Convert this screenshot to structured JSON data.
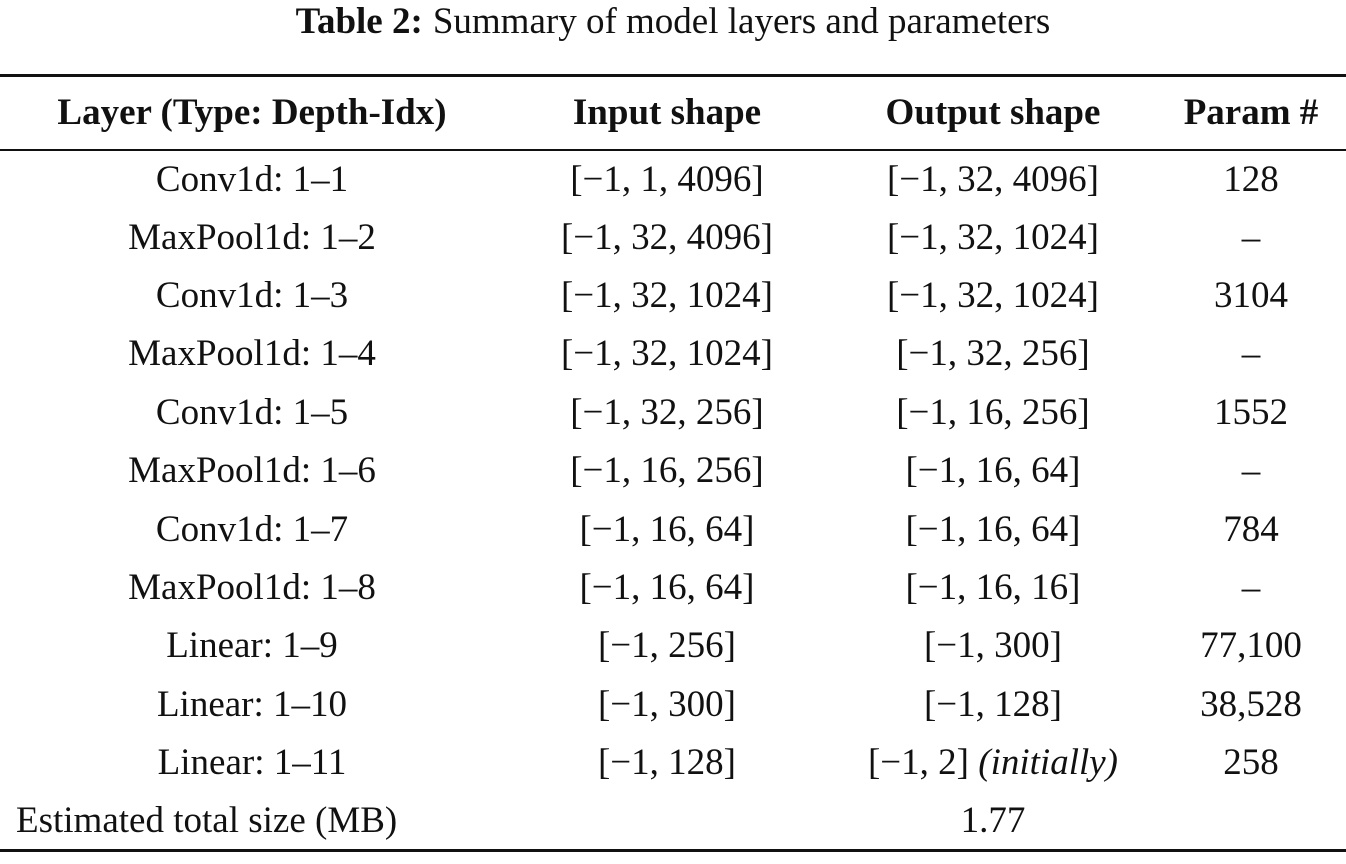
{
  "caption": {
    "label": "Table 2:",
    "text": "Summary of model layers and parameters"
  },
  "table": {
    "headers": [
      "Layer (Type: Depth-Idx)",
      "Input shape",
      "Output shape",
      "Param #"
    ],
    "rows": [
      {
        "layer": "Conv1d: 1–1",
        "input": "[−1, 1, 4096]",
        "output": "[−1, 32, 4096]",
        "output_note": "",
        "params": "128"
      },
      {
        "layer": "MaxPool1d: 1–2",
        "input": "[−1, 32, 4096]",
        "output": "[−1, 32, 1024]",
        "output_note": "",
        "params": "–"
      },
      {
        "layer": "Conv1d: 1–3",
        "input": "[−1, 32, 1024]",
        "output": "[−1, 32, 1024]",
        "output_note": "",
        "params": "3104"
      },
      {
        "layer": "MaxPool1d: 1–4",
        "input": "[−1, 32, 1024]",
        "output": "[−1, 32, 256]",
        "output_note": "",
        "params": "–"
      },
      {
        "layer": "Conv1d: 1–5",
        "input": "[−1, 32, 256]",
        "output": "[−1, 16, 256]",
        "output_note": "",
        "params": "1552"
      },
      {
        "layer": "MaxPool1d: 1–6",
        "input": "[−1, 16, 256]",
        "output": "[−1, 16, 64]",
        "output_note": "",
        "params": "–"
      },
      {
        "layer": "Conv1d: 1–7",
        "input": "[−1, 16, 64]",
        "output": "[−1, 16, 64]",
        "output_note": "",
        "params": "784"
      },
      {
        "layer": "MaxPool1d: 1–8",
        "input": "[−1, 16, 64]",
        "output": "[−1, 16, 16]",
        "output_note": "",
        "params": "–"
      },
      {
        "layer": "Linear: 1–9",
        "input": "[−1, 256]",
        "output": "[−1, 300]",
        "output_note": "",
        "params": "77,100"
      },
      {
        "layer": "Linear: 1–10",
        "input": "[−1, 300]",
        "output": "[−1, 128]",
        "output_note": "",
        "params": "38,528"
      },
      {
        "layer": "Linear: 1–11",
        "input": "[−1, 128]",
        "output": "[−1, 2]",
        "output_note": "(initially)",
        "params": "258"
      }
    ],
    "total": {
      "label": "Estimated total size (MB)",
      "value": "1.77"
    }
  }
}
